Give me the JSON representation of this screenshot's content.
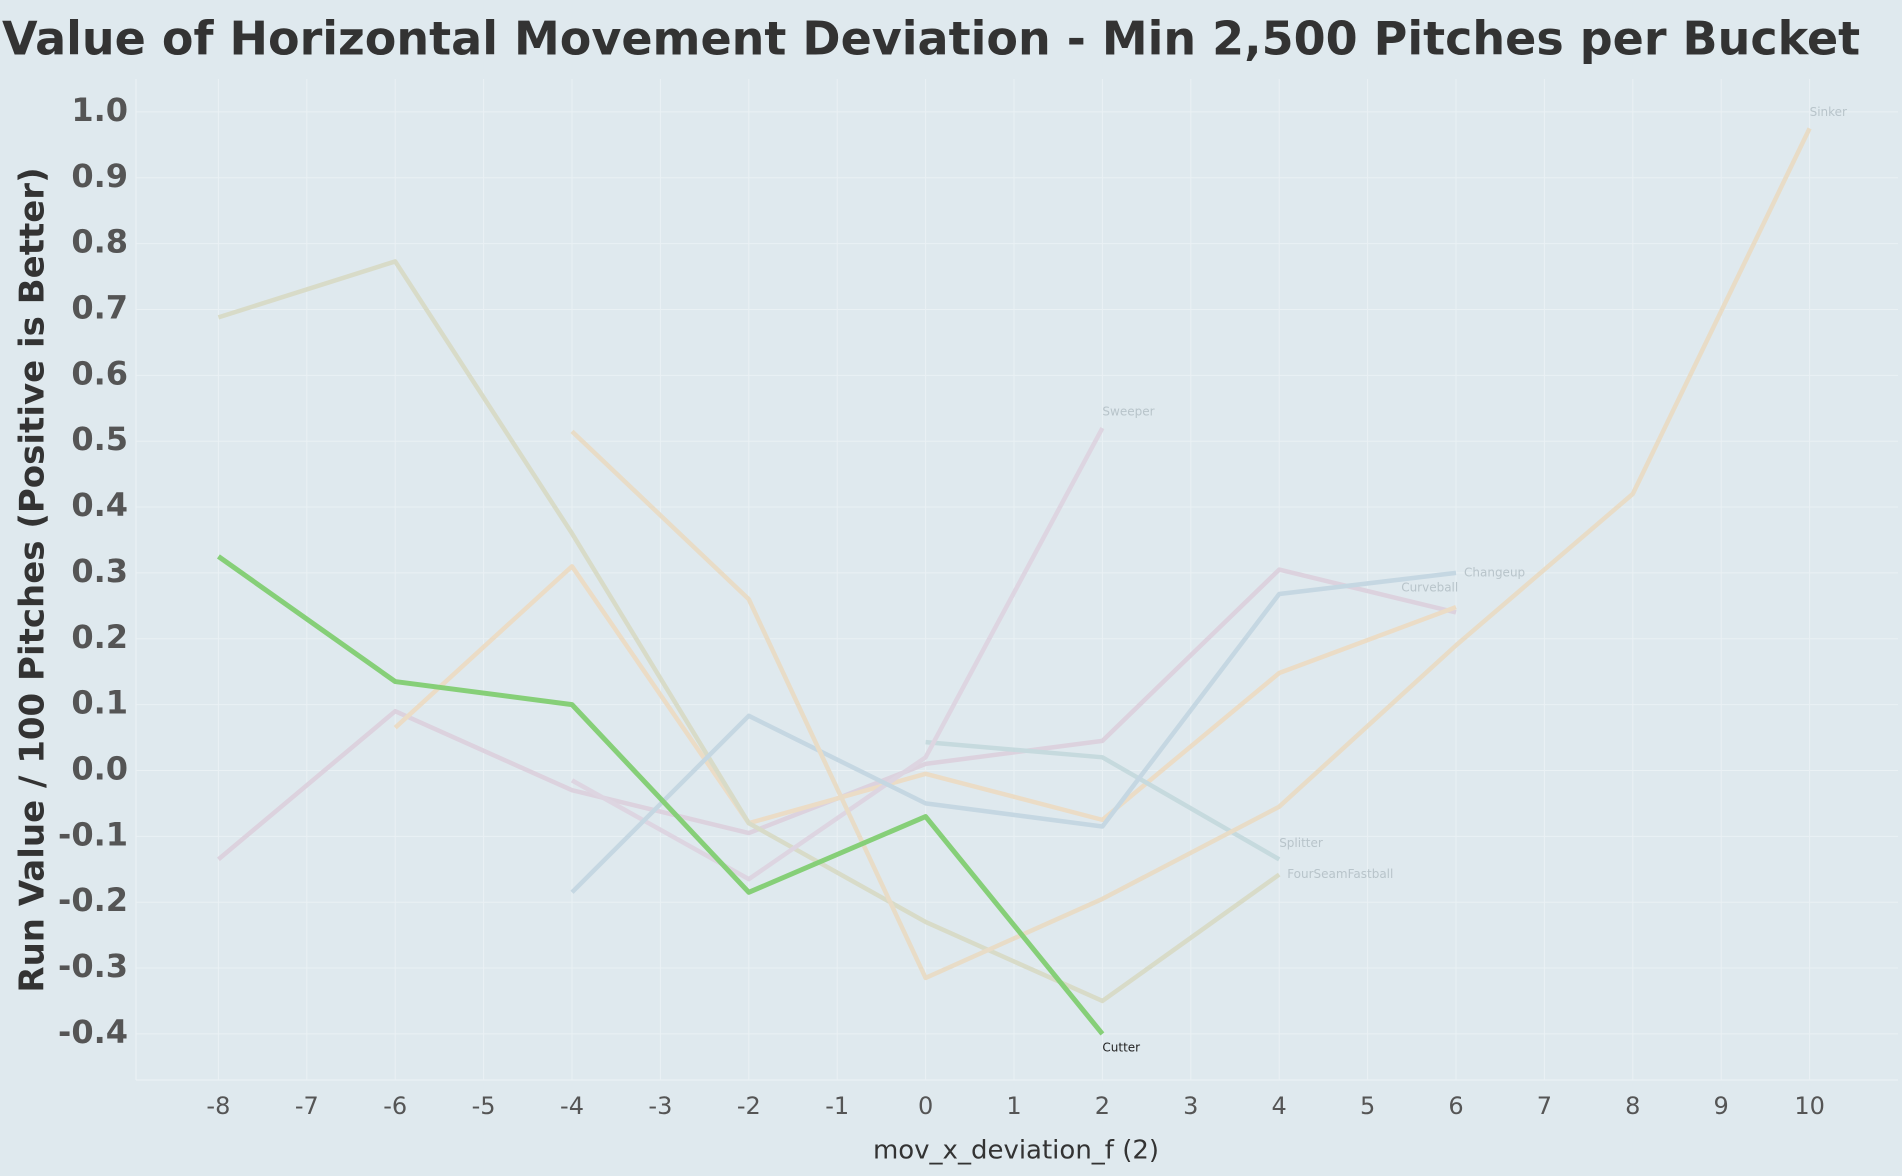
{
  "chart_data": {
    "type": "line",
    "title": "Value of Horizontal Movement Deviation - Min 2,500 Pitches per Bucket",
    "x_label": "mov_x_deviation_f (2)",
    "y_label": "Run Value / 100 Pitches (Positive is Better)",
    "x": [
      -8,
      -6,
      -4,
      -2,
      0,
      2,
      4,
      6,
      8,
      10
    ],
    "xlim": [
      -9,
      11
    ],
    "xticks": [
      -8,
      -7,
      -6,
      -5,
      -4,
      -3,
      -2,
      -1,
      0,
      1,
      2,
      3,
      4,
      5,
      6,
      7,
      8,
      9,
      10
    ],
    "ylim": [
      -0.47,
      1.05
    ],
    "yticks": [
      -0.4,
      -0.3,
      -0.2,
      -0.1,
      {
        "value": 0,
        "label": "0.0"
      },
      0.1,
      0.2,
      0.3,
      0.4,
      0.5,
      0.6,
      0.7,
      0.8,
      0.9,
      {
        "value": 1,
        "label": "1.0"
      }
    ],
    "grid": true,
    "series": [
      {
        "color": "#dcd2de",
        "values": [
          -0.135,
          0.09,
          -0.03,
          -0.095,
          0.01,
          0.045,
          0.305,
          0.24,
          null,
          null
        ]
      },
      {
        "color": "#ebdcc6",
        "values": [
          null,
          0.065,
          0.31,
          -0.08,
          -0.005,
          -0.075,
          0.148,
          0.248,
          null,
          null
        ]
      },
      {
        "name": "FourSeamFastball",
        "color": "#d8dbc8",
        "values": [
          0.688,
          0.773,
          0.36,
          -0.08,
          -0.23,
          -0.35,
          -0.158,
          null,
          null,
          null
        ]
      },
      {
        "name": "Splitter",
        "color": "#c6dade",
        "values": [
          null,
          null,
          null,
          null,
          0.043,
          0.02,
          -0.135,
          null,
          null,
          null
        ]
      },
      {
        "name": "Sweeper",
        "color": "#ddd5e1",
        "values": [
          null,
          null,
          -0.015,
          -0.165,
          0.02,
          0.52,
          null,
          null,
          null,
          null
        ]
      },
      {
        "name": "Changeup",
        "color": "#c5d7e2",
        "values": [
          null,
          null,
          -0.185,
          0.083,
          -0.05,
          -0.085,
          0.268,
          0.3,
          null,
          null
        ]
      },
      {
        "name": "Curveball",
        "color": "#e6dccb",
        "values": [
          null,
          null,
          null,
          null,
          null,
          null,
          null,
          null,
          null,
          null
        ]
      },
      {
        "name": "Sinker",
        "color": "#e8dcc7",
        "values": [
          null,
          null,
          0.515,
          0.26,
          -0.315,
          -0.195,
          -0.055,
          0.19,
          0.42,
          0.975
        ]
      },
      {
        "name": "Cutter",
        "color": "#86cf78",
        "values": [
          0.325,
          0.135,
          0.1,
          -0.185,
          -0.07,
          -0.4,
          null,
          null,
          null,
          null
        ]
      }
    ]
  }
}
